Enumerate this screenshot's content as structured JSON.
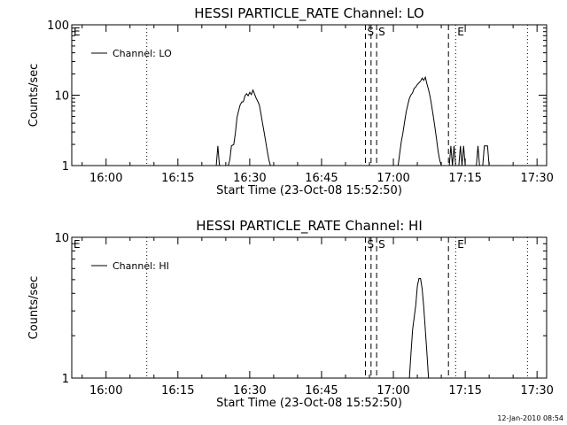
{
  "footer": {
    "timestamp": "12-Jan-2010 08:54"
  },
  "chart_data": [
    {
      "type": "line",
      "title": "HESSI PARTICLE_RATE Channel: LO",
      "xlabel": "Start Time (23-Oct-08 15:52:50)",
      "ylabel": "Counts/sec",
      "yscale": "log",
      "ylim": [
        1,
        100
      ],
      "xlim": [
        "15:52:50",
        "17:32:00"
      ],
      "x_ticks": [
        "16:00",
        "16:15",
        "16:30",
        "16:45",
        "17:00",
        "17:15",
        "17:30"
      ],
      "y_ticks": [
        {
          "value": 1,
          "label": "1"
        },
        {
          "value": 10,
          "label": "10"
        },
        {
          "value": 100,
          "label": "100"
        }
      ],
      "legend": {
        "position": "top-left",
        "entries": [
          "Channel: LO"
        ]
      },
      "markers": [
        {
          "time": "15:52:50",
          "style": "none",
          "label": "E"
        },
        {
          "time": "16:08:30",
          "style": "dotted",
          "label": ""
        },
        {
          "time": "16:54:10",
          "style": "dashed",
          "label": "S"
        },
        {
          "time": "16:55:20",
          "style": "dashed",
          "label": ""
        },
        {
          "time": "16:56:30",
          "style": "dashed",
          "label": "S"
        },
        {
          "time": "17:11:30",
          "style": "dashed",
          "label": ""
        },
        {
          "time": "17:13:00",
          "style": "dotted",
          "label": "E"
        },
        {
          "time": "17:28:00",
          "style": "dotted",
          "label": ""
        }
      ],
      "series": [
        {
          "name": "Channel: LO",
          "points": [
            [
              "16:23:00",
              1
            ],
            [
              "16:23:20",
              1.9
            ],
            [
              "16:23:40",
              1
            ],
            [
              "16:25:30",
              1
            ],
            [
              "16:25:50",
              1.2
            ],
            [
              "16:26:10",
              1.9
            ],
            [
              "16:26:40",
              2
            ],
            [
              "16:27:00",
              2.9
            ],
            [
              "16:27:20",
              4.8
            ],
            [
              "16:27:40",
              6
            ],
            [
              "16:28:00",
              7.3
            ],
            [
              "16:28:20",
              8
            ],
            [
              "16:28:40",
              8.1
            ],
            [
              "16:29:00",
              9.8
            ],
            [
              "16:29:20",
              10.5
            ],
            [
              "16:29:40",
              9.8
            ],
            [
              "16:30:00",
              11
            ],
            [
              "16:30:20",
              10.2
            ],
            [
              "16:30:40",
              11.8
            ],
            [
              "16:31:00",
              10.4
            ],
            [
              "16:31:20",
              9.1
            ],
            [
              "16:31:40",
              8.2
            ],
            [
              "16:32:00",
              7.3
            ],
            [
              "16:32:20",
              5.5
            ],
            [
              "16:32:40",
              4
            ],
            [
              "16:33:00",
              3
            ],
            [
              "16:33:20",
              2.2
            ],
            [
              "16:33:40",
              1.6
            ],
            [
              "16:34:00",
              1.2
            ],
            [
              "16:34:20",
              1
            ],
            [
              "17:01:00",
              1
            ],
            [
              "17:01:20",
              1.5
            ],
            [
              "17:01:40",
              2.2
            ],
            [
              "17:02:00",
              2.9
            ],
            [
              "17:02:20",
              4.2
            ],
            [
              "17:02:40",
              5.8
            ],
            [
              "17:03:00",
              7.3
            ],
            [
              "17:03:20",
              9
            ],
            [
              "17:03:40",
              10.1
            ],
            [
              "17:04:00",
              10.8
            ],
            [
              "17:04:20",
              12.5
            ],
            [
              "17:04:40",
              13.1
            ],
            [
              "17:05:00",
              14.2
            ],
            [
              "17:05:20",
              15
            ],
            [
              "17:05:40",
              15.8
            ],
            [
              "17:06:00",
              17.5
            ],
            [
              "17:06:20",
              16.2
            ],
            [
              "17:06:40",
              18
            ],
            [
              "17:07:00",
              14.5
            ],
            [
              "17:07:20",
              12
            ],
            [
              "17:07:40",
              9.5
            ],
            [
              "17:08:00",
              7
            ],
            [
              "17:08:20",
              5
            ],
            [
              "17:08:40",
              3.5
            ],
            [
              "17:09:00",
              2.4
            ],
            [
              "17:09:20",
              1.6
            ],
            [
              "17:09:40",
              1.2
            ],
            [
              "17:10:00",
              1
            ],
            [
              "17:11:40",
              1
            ],
            [
              "17:12:00",
              1.9
            ],
            [
              "17:12:20",
              1
            ],
            [
              "17:12:40",
              1.9
            ],
            [
              "17:13:00",
              1
            ],
            [
              "17:13:40",
              1
            ],
            [
              "17:14:00",
              1.9
            ],
            [
              "17:14:20",
              1
            ],
            [
              "17:14:40",
              1.9
            ],
            [
              "17:15:00",
              1
            ],
            [
              "17:17:20",
              1
            ],
            [
              "17:17:40",
              1.9
            ],
            [
              "17:18:00",
              1
            ],
            [
              "17:18:40",
              1
            ],
            [
              "17:19:00",
              1.9
            ],
            [
              "17:19:40",
              1.9
            ],
            [
              "17:20:00",
              1
            ]
          ]
        }
      ]
    },
    {
      "type": "line",
      "title": "HESSI PARTICLE_RATE Channel: HI",
      "xlabel": "Start Time (23-Oct-08 15:52:50)",
      "ylabel": "Counts/sec",
      "yscale": "log",
      "ylim": [
        1,
        10
      ],
      "xlim": [
        "15:52:50",
        "17:32:00"
      ],
      "x_ticks": [
        "16:00",
        "16:15",
        "16:30",
        "16:45",
        "17:00",
        "17:15",
        "17:30"
      ],
      "y_ticks": [
        {
          "value": 1,
          "label": "1"
        },
        {
          "value": 10,
          "label": "10"
        }
      ],
      "legend": {
        "position": "top-left",
        "entries": [
          "Channel: HI"
        ]
      },
      "markers": [
        {
          "time": "15:52:50",
          "style": "none",
          "label": "E"
        },
        {
          "time": "16:08:30",
          "style": "dotted",
          "label": ""
        },
        {
          "time": "16:54:10",
          "style": "dashed",
          "label": "S"
        },
        {
          "time": "16:55:20",
          "style": "dashed",
          "label": ""
        },
        {
          "time": "16:56:30",
          "style": "dashed",
          "label": "S"
        },
        {
          "time": "17:11:30",
          "style": "dashed",
          "label": ""
        },
        {
          "time": "17:13:00",
          "style": "dotted",
          "label": "E"
        },
        {
          "time": "17:28:00",
          "style": "dotted",
          "label": ""
        }
      ],
      "series": [
        {
          "name": "Channel: HI",
          "points": [
            [
              "17:03:20",
              1
            ],
            [
              "17:03:40",
              1.5
            ],
            [
              "17:04:00",
              2.2
            ],
            [
              "17:04:20",
              2.7
            ],
            [
              "17:04:40",
              3.3
            ],
            [
              "17:05:00",
              4.5
            ],
            [
              "17:05:20",
              5.1
            ],
            [
              "17:05:40",
              5.1
            ],
            [
              "17:06:00",
              4.3
            ],
            [
              "17:06:20",
              3.2
            ],
            [
              "17:06:40",
              2.2
            ],
            [
              "17:07:00",
              1.5
            ],
            [
              "17:07:20",
              1
            ]
          ]
        }
      ]
    }
  ]
}
